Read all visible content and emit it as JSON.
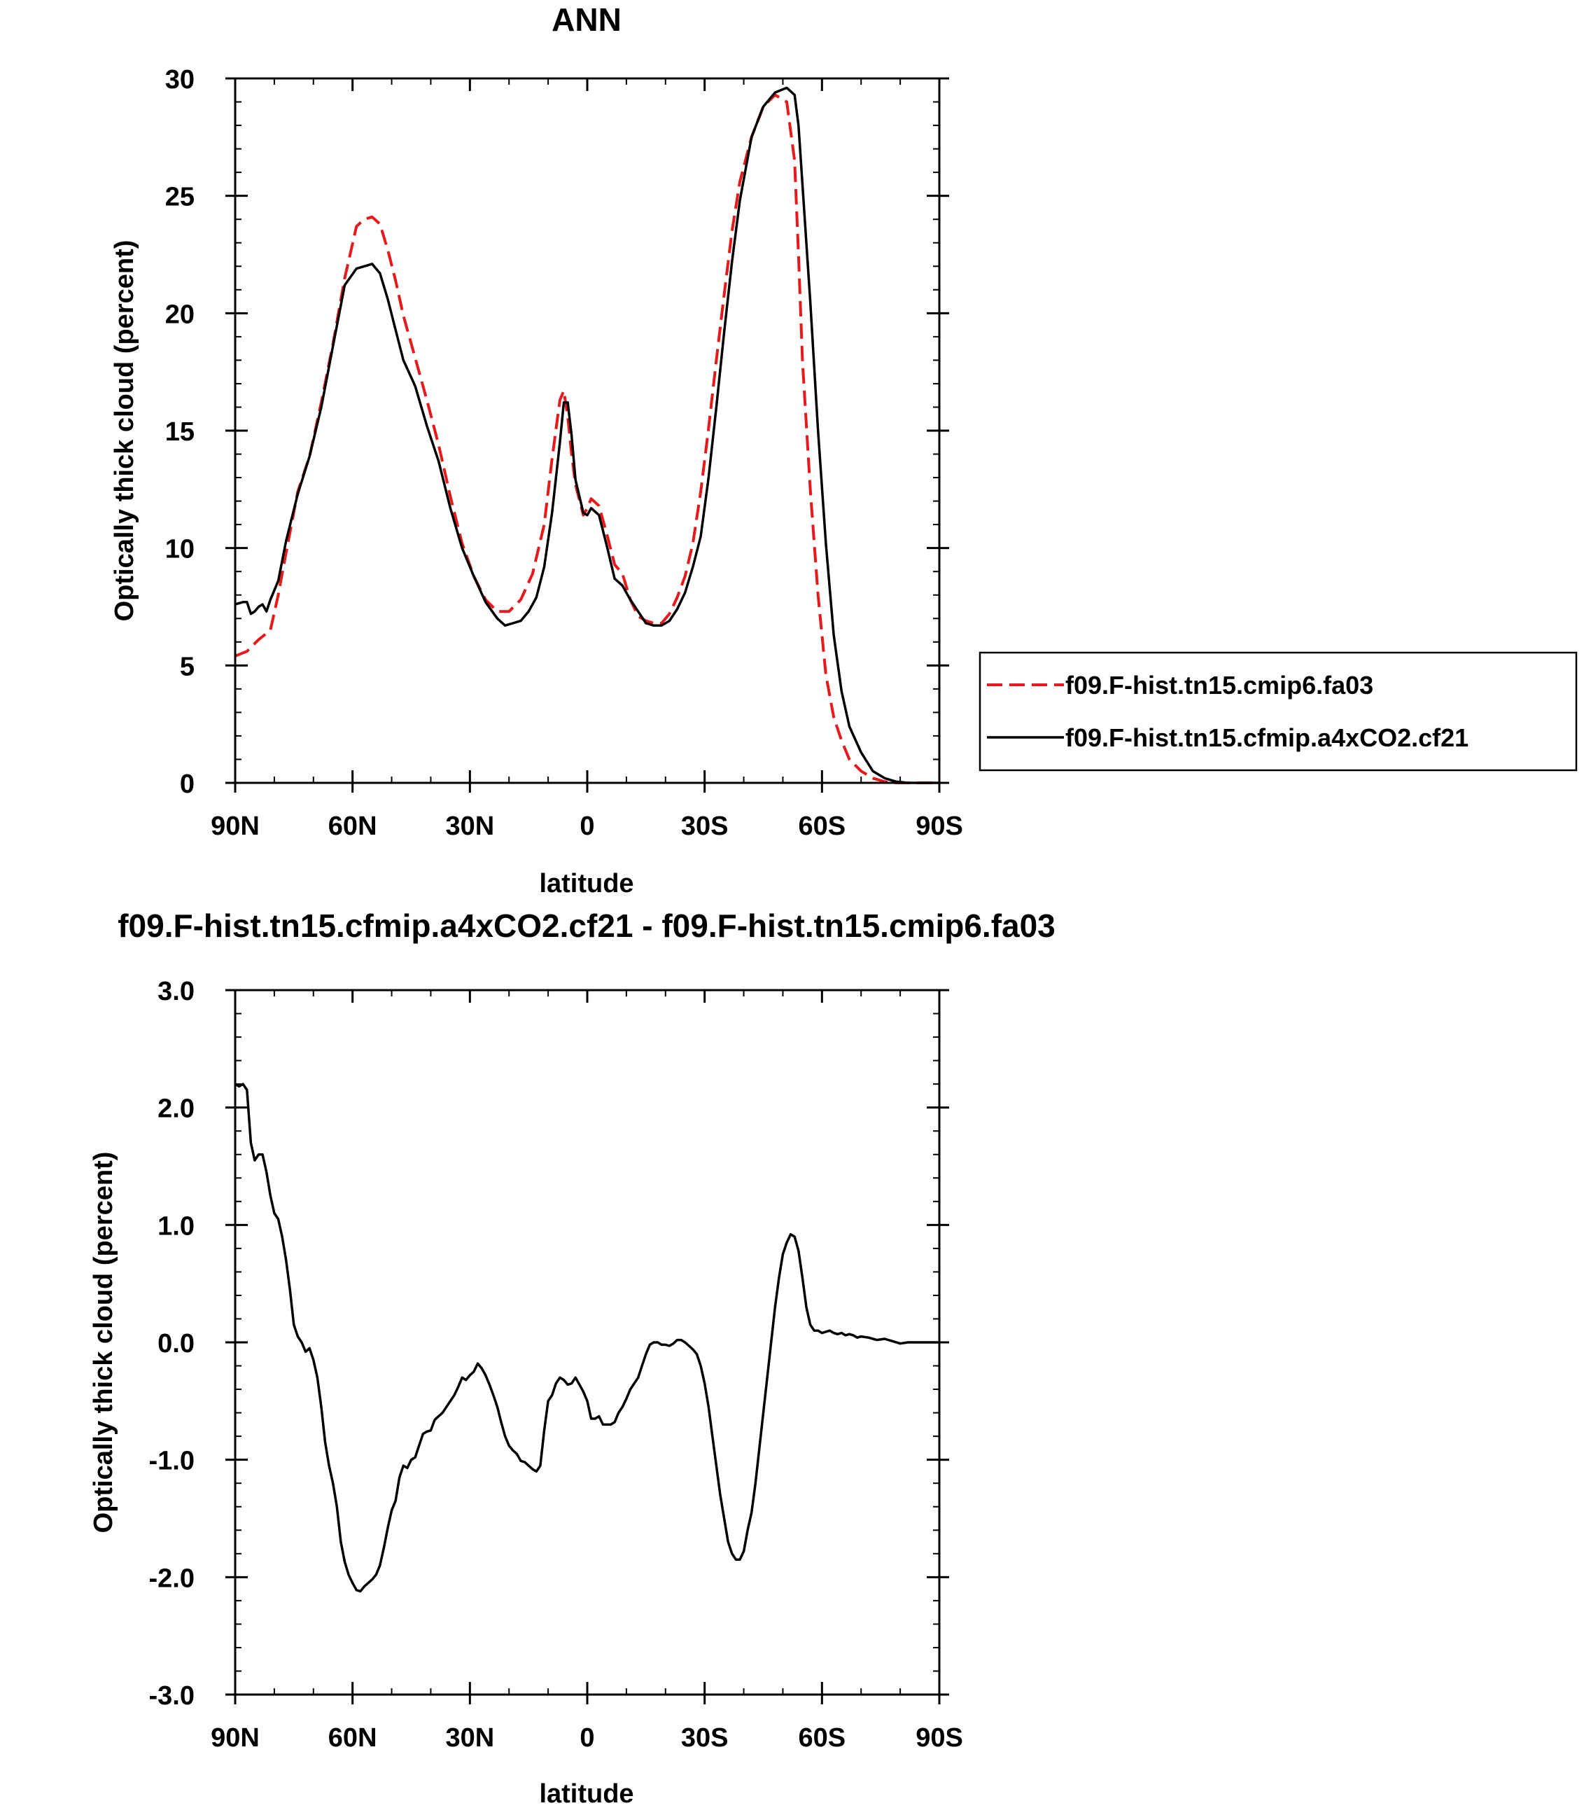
{
  "chart_data": [
    {
      "type": "line",
      "title": "ANN",
      "xlabel": "latitude",
      "ylabel": "Optically thick cloud (percent)",
      "xlim": [
        90,
        -90
      ],
      "ylim": [
        0,
        30
      ],
      "x_ticks": [
        90,
        60,
        30,
        0,
        -30,
        -60,
        -90
      ],
      "x_tick_labels": [
        "90N",
        "60N",
        "30N",
        "0",
        "30S",
        "60S",
        "90S"
      ],
      "y_ticks": [
        0,
        5,
        10,
        15,
        20,
        25,
        30
      ],
      "y_tick_labels": [
        "0",
        "5",
        "10",
        "15",
        "20",
        "25",
        "30"
      ],
      "legend_position": "right",
      "series": [
        {
          "name": "f09.F-hist.tn15.cmip6.fa03",
          "color": "#e8191b",
          "style": "dashed",
          "x": [
            90,
            87,
            84,
            81,
            79,
            77,
            74,
            71,
            68,
            65,
            62,
            59,
            57,
            55,
            53,
            51,
            49,
            47,
            44,
            41,
            38,
            35,
            32,
            29,
            26,
            23,
            20,
            17,
            14,
            11,
            9,
            7,
            6,
            5,
            4,
            3,
            1,
            0,
            -1,
            -3,
            -5,
            -7,
            -9,
            -11,
            -13,
            -15,
            -17,
            -19,
            -21,
            -23,
            -25,
            -27,
            -29,
            -31,
            -33,
            -35,
            -37,
            -39,
            -42,
            -45,
            -48,
            -51,
            -53,
            -54,
            -55,
            -57,
            -59,
            -61,
            -63,
            -65,
            -67,
            -70,
            -73,
            -76,
            -79,
            -82,
            -85,
            -88,
            -90
          ],
          "y": [
            5.4,
            5.6,
            6.1,
            6.5,
            8.0,
            9.8,
            12.4,
            13.9,
            16.2,
            18.7,
            21.5,
            23.7,
            24.0,
            24.1,
            23.8,
            22.7,
            21.4,
            19.9,
            18.1,
            16.3,
            14.4,
            12.2,
            10.2,
            8.8,
            7.8,
            7.3,
            7.3,
            7.8,
            8.9,
            11.0,
            13.8,
            16.3,
            16.7,
            15.6,
            14.0,
            12.7,
            11.4,
            11.7,
            12.1,
            11.8,
            10.6,
            9.3,
            8.9,
            7.8,
            7.1,
            6.9,
            6.8,
            6.8,
            7.2,
            7.9,
            8.8,
            10.2,
            12.4,
            15.1,
            18.0,
            20.8,
            23.5,
            25.6,
            27.5,
            28.8,
            29.3,
            29.0,
            26.5,
            22.5,
            18.0,
            12.5,
            8.0,
            4.6,
            2.8,
            1.8,
            1.0,
            0.5,
            0.2,
            0.05,
            0.0,
            0.0,
            0.0,
            0.0,
            0.0
          ]
        },
        {
          "name": "f09.F-hist.tn15.cfmip.a4xCO2.cf21",
          "color": "#000000",
          "style": "solid",
          "x": [
            90,
            88,
            87,
            86,
            85,
            84,
            83,
            82,
            81,
            79,
            77,
            74,
            71,
            68,
            65,
            62,
            59,
            57,
            55,
            53,
            51,
            49,
            47,
            44,
            41,
            38,
            35,
            32,
            29,
            26,
            23,
            21,
            19,
            17,
            15,
            13,
            11,
            9,
            7,
            6,
            5,
            4,
            3,
            1,
            0,
            -1,
            -3,
            -5,
            -7,
            -9,
            -11,
            -13,
            -15,
            -17,
            -19,
            -21,
            -23,
            -25,
            -27,
            -29,
            -31,
            -33,
            -35,
            -37,
            -39,
            -42,
            -45,
            -48,
            -51,
            -53,
            -54,
            -55,
            -57,
            -59,
            -61,
            -63,
            -65,
            -67,
            -70,
            -73,
            -76,
            -79,
            -82,
            -85,
            -88,
            -90
          ],
          "y": [
            7.6,
            7.7,
            7.7,
            7.2,
            7.3,
            7.5,
            7.6,
            7.3,
            7.8,
            8.6,
            10.3,
            12.3,
            13.9,
            16.0,
            18.6,
            21.2,
            21.9,
            22.0,
            22.1,
            21.7,
            20.6,
            19.3,
            18.0,
            16.9,
            15.2,
            13.7,
            11.7,
            10.0,
            8.8,
            7.7,
            7.0,
            6.7,
            6.8,
            6.9,
            7.3,
            7.9,
            9.2,
            11.5,
            14.5,
            16.2,
            16.2,
            14.8,
            12.9,
            11.5,
            11.4,
            11.7,
            11.4,
            10.1,
            8.7,
            8.4,
            7.8,
            7.3,
            6.8,
            6.7,
            6.7,
            6.9,
            7.4,
            8.1,
            9.2,
            10.5,
            13.0,
            16.0,
            19.2,
            22.2,
            24.8,
            27.5,
            28.8,
            29.4,
            29.6,
            29.3,
            28.0,
            25.5,
            20.5,
            15.0,
            10.2,
            6.3,
            3.9,
            2.4,
            1.3,
            0.5,
            0.2,
            0.05,
            0.0,
            0.0,
            0.0,
            0.0
          ]
        }
      ]
    },
    {
      "type": "line",
      "title": "f09.F-hist.tn15.cfmip.a4xCO2.cf21 - f09.F-hist.tn15.cmip6.fa03",
      "xlabel": "latitude",
      "ylabel": "Optically thick cloud (percent)",
      "xlim": [
        90,
        -90
      ],
      "ylim": [
        -3,
        3
      ],
      "x_ticks": [
        90,
        60,
        30,
        0,
        -30,
        -60,
        -90
      ],
      "x_tick_labels": [
        "90N",
        "60N",
        "30N",
        "0",
        "30S",
        "60S",
        "90S"
      ],
      "y_ticks": [
        -3,
        -2,
        -1,
        0,
        1,
        2,
        3
      ],
      "y_tick_labels": [
        "-3.0",
        "-2.0",
        "-1.0",
        "0.0",
        "1.0",
        "2.0",
        "3.0"
      ],
      "series": [
        {
          "color": "#000000",
          "style": "solid",
          "x": [
            90,
            89,
            88,
            87,
            86,
            85,
            84,
            83,
            82,
            81,
            80,
            79,
            78,
            77,
            76,
            75,
            74,
            73,
            72,
            71,
            70,
            69,
            68,
            67,
            66,
            65,
            64,
            63,
            62,
            61,
            60,
            59,
            58,
            57,
            56,
            55,
            54,
            53,
            52,
            51,
            50,
            49,
            48,
            47,
            46,
            45,
            44,
            43,
            42,
            41,
            40,
            39,
            38,
            37,
            36,
            35,
            34,
            33,
            32,
            31,
            30,
            29,
            28,
            27,
            26,
            25,
            24,
            23,
            22,
            21,
            20,
            19,
            18,
            17,
            16,
            15,
            14,
            13,
            12,
            11,
            10,
            9,
            8,
            7,
            6,
            5,
            4,
            3,
            2,
            1,
            0,
            -1,
            -2,
            -3,
            -4,
            -5,
            -6,
            -7,
            -8,
            -9,
            -10,
            -11,
            -12,
            -13,
            -14,
            -15,
            -16,
            -17,
            -18,
            -19,
            -20,
            -21,
            -22,
            -23,
            -24,
            -25,
            -26,
            -27,
            -28,
            -29,
            -30,
            -31,
            -32,
            -33,
            -34,
            -35,
            -36,
            -37,
            -38,
            -39,
            -40,
            -41,
            -42,
            -43,
            -44,
            -45,
            -46,
            -47,
            -48,
            -49,
            -50,
            -51,
            -52,
            -53,
            -54,
            -55,
            -56,
            -57,
            -58,
            -59,
            -60,
            -61,
            -62,
            -63,
            -64,
            -65,
            -66,
            -67,
            -68,
            -69,
            -70,
            -72,
            -74,
            -76,
            -78,
            -80,
            -82,
            -84,
            -86,
            -88,
            -90
          ],
          "y": [
            2.2,
            2.18,
            2.2,
            2.15,
            1.7,
            1.55,
            1.6,
            1.6,
            1.45,
            1.25,
            1.1,
            1.05,
            0.9,
            0.7,
            0.45,
            0.15,
            0.05,
            0.0,
            -0.08,
            -0.05,
            -0.15,
            -0.3,
            -0.55,
            -0.85,
            -1.05,
            -1.2,
            -1.4,
            -1.7,
            -1.87,
            -1.98,
            -2.05,
            -2.11,
            -2.12,
            -2.08,
            -2.05,
            -2.02,
            -1.98,
            -1.9,
            -1.75,
            -1.58,
            -1.43,
            -1.35,
            -1.15,
            -1.05,
            -1.07,
            -1.0,
            -0.98,
            -0.88,
            -0.78,
            -0.76,
            -0.75,
            -0.66,
            -0.63,
            -0.6,
            -0.55,
            -0.5,
            -0.45,
            -0.38,
            -0.3,
            -0.32,
            -0.28,
            -0.25,
            -0.18,
            -0.22,
            -0.28,
            -0.36,
            -0.45,
            -0.55,
            -0.68,
            -0.8,
            -0.88,
            -0.92,
            -0.95,
            -1.01,
            -1.02,
            -1.05,
            -1.08,
            -1.1,
            -1.05,
            -0.75,
            -0.5,
            -0.45,
            -0.35,
            -0.3,
            -0.32,
            -0.36,
            -0.35,
            -0.3,
            -0.36,
            -0.42,
            -0.5,
            -0.65,
            -0.65,
            -0.63,
            -0.7,
            -0.7,
            -0.7,
            -0.68,
            -0.6,
            -0.55,
            -0.48,
            -0.4,
            -0.35,
            -0.3,
            -0.2,
            -0.1,
            -0.02,
            0.0,
            0.0,
            -0.02,
            -0.02,
            -0.03,
            -0.01,
            0.02,
            0.02,
            0.0,
            -0.03,
            -0.06,
            -0.1,
            -0.2,
            -0.35,
            -0.55,
            -0.8,
            -1.05,
            -1.3,
            -1.5,
            -1.7,
            -1.8,
            -1.85,
            -1.85,
            -1.78,
            -1.6,
            -1.45,
            -1.2,
            -0.9,
            -0.6,
            -0.3,
            0.0,
            0.3,
            0.55,
            0.75,
            0.85,
            0.92,
            0.9,
            0.78,
            0.55,
            0.3,
            0.15,
            0.1,
            0.1,
            0.08,
            0.09,
            0.1,
            0.08,
            0.07,
            0.08,
            0.06,
            0.07,
            0.06,
            0.04,
            0.05,
            0.04,
            0.02,
            0.03,
            0.01,
            -0.01,
            0.0,
            0.0,
            0.0,
            0.0,
            0.0
          ]
        }
      ]
    }
  ]
}
